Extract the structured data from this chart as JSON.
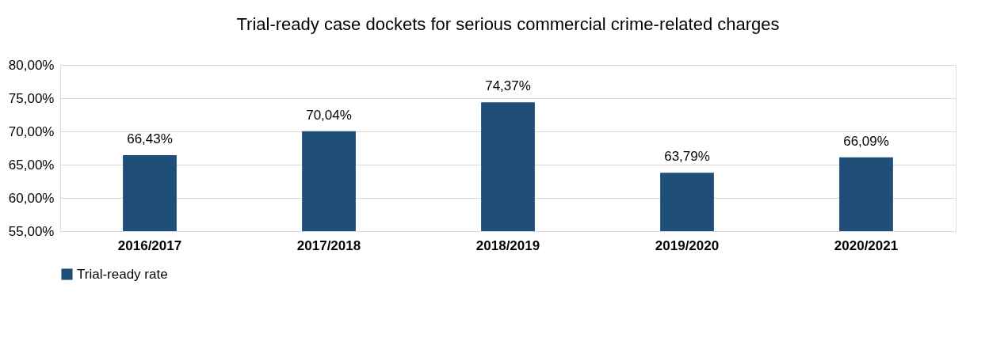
{
  "chart_data": {
    "type": "bar",
    "title": "Trial-ready case dockets for serious commercial crime-related charges",
    "categories": [
      "2016/2017",
      "2017/2018",
      "2018/2019",
      "2019/2020",
      "2020/2021"
    ],
    "series": [
      {
        "name": "Trial-ready rate",
        "color": "#1f4e79",
        "values": [
          66.43,
          70.04,
          74.37,
          63.79,
          66.09
        ],
        "value_labels": [
          "66,43%",
          "70,04%",
          "74,37%",
          "63,79%",
          "66,09%"
        ]
      }
    ],
    "ylim": [
      55,
      80
    ],
    "yticks": [
      {
        "value": 55,
        "label": "55,00%"
      },
      {
        "value": 60,
        "label": "60,00%"
      },
      {
        "value": 65,
        "label": "65,00%"
      },
      {
        "value": 70,
        "label": "70,00%"
      },
      {
        "value": 75,
        "label": "75,00%"
      },
      {
        "value": 80,
        "label": "80,00%"
      }
    ],
    "grid": "y",
    "legend": "bottom"
  }
}
